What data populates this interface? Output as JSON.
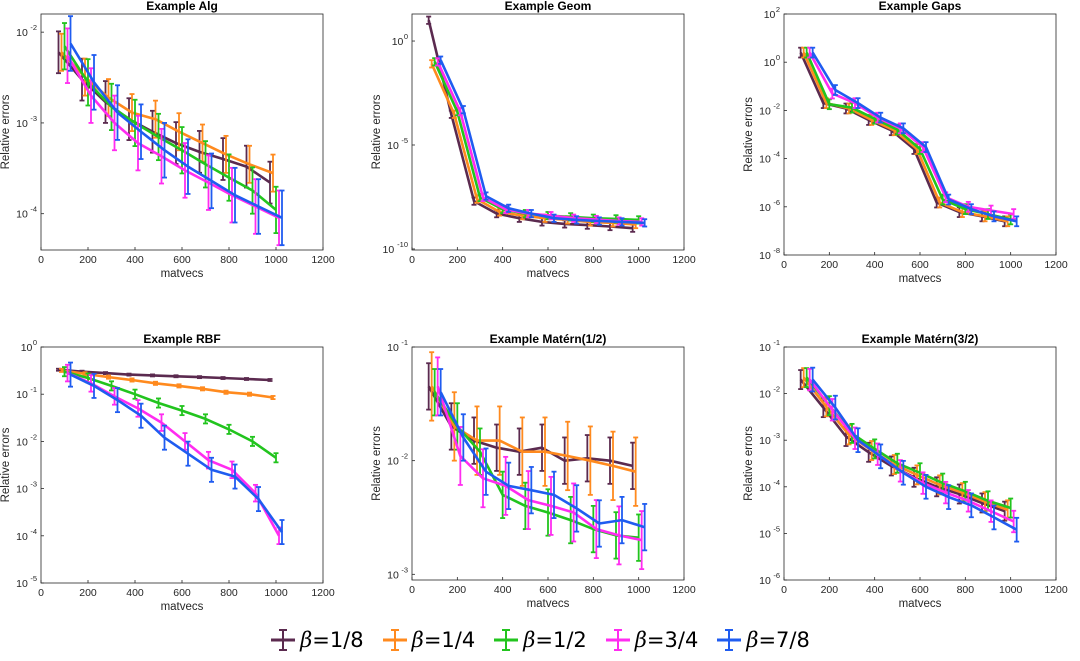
{
  "legend": {
    "symbol": "β",
    "items": [
      {
        "label": "=1/8",
        "color": "#5b2a4f"
      },
      {
        "label": "=1/4",
        "color": "#ff8a1e"
      },
      {
        "label": "=1/2",
        "color": "#22c41e"
      },
      {
        "label": "=3/4",
        "color": "#ff2cf0"
      },
      {
        "label": "=7/8",
        "color": "#1f5cf0"
      }
    ]
  },
  "chart_data": [
    {
      "type": "line",
      "title": "Example Alg",
      "xlabel": "matvecs",
      "ylabel": "Relative errors",
      "xlim": [
        0,
        1200
      ],
      "xticks": [
        "0",
        "200",
        "400",
        "600",
        "800",
        "1000",
        "1200"
      ],
      "ylim_log10": [
        -4.4,
        -1.8
      ],
      "yticks": [
        {
          "exp": -2,
          "label": "10"
        },
        {
          "exp": -3,
          "label": "10"
        },
        {
          "exp": -4,
          "label": "10"
        }
      ],
      "x": [
        100,
        200,
        300,
        400,
        500,
        600,
        700,
        800,
        900,
        1000
      ],
      "series": [
        {
          "name": "β=1/8",
          "values": [
            0.006,
            0.003,
            0.0017,
            0.0011,
            0.0008,
            0.0006,
            0.00048,
            0.0004,
            0.00033,
            0.00022
          ],
          "err_factor": 1.7
        },
        {
          "name": "β=1/4",
          "values": [
            0.006,
            0.0032,
            0.0019,
            0.0013,
            0.0011,
            0.0008,
            0.0006,
            0.00045,
            0.00035,
            0.00028
          ],
          "err_factor": 1.6
        },
        {
          "name": "β=1/2",
          "values": [
            0.007,
            0.0028,
            0.0015,
            0.001,
            0.0007,
            0.0005,
            0.00035,
            0.00025,
            0.00018,
            0.00011
          ],
          "err_factor": 1.8
        },
        {
          "name": "β=3/4",
          "values": [
            0.0055,
            0.002,
            0.001,
            0.0006,
            0.00043,
            0.0003,
            0.00022,
            0.00016,
            0.00012,
            9e-05
          ],
          "err_factor": 2.0
        },
        {
          "name": "β=7/8",
          "values": [
            0.0075,
            0.0028,
            0.0013,
            0.0008,
            0.0005,
            0.00033,
            0.00023,
            0.00016,
            0.00012,
            9e-05
          ],
          "err_factor": 2.0
        }
      ]
    },
    {
      "type": "line",
      "title": "Example Geom",
      "xlabel": "matvecs",
      "ylabel": "Relative errors",
      "xlim": [
        0,
        1200
      ],
      "xticks": [
        "0",
        "200",
        "400",
        "600",
        "800",
        "1000",
        "1200"
      ],
      "ylim_log10": [
        -10.05,
        1.3
      ],
      "yticks": [
        {
          "exp": 0,
          "label": "10"
        },
        {
          "exp": -5,
          "label": "10"
        },
        {
          "exp": -10,
          "label": "10"
        }
      ],
      "x": [
        100,
        200,
        300,
        400,
        500,
        600,
        700,
        800,
        900,
        1000
      ],
      "series": [
        {
          "name": "β=1/8",
          "values": [
            10,
            0.0003,
            2e-08,
            5e-09,
            3e-09,
            2e-09,
            1.6e-09,
            1.4e-09,
            1.2e-09,
            1e-09
          ],
          "err_factor": 1.5
        },
        {
          "name": "β=1/4",
          "values": [
            0.08,
            0.0003,
            2.5e-08,
            6e-09,
            4e-09,
            3e-09,
            2.5e-09,
            2e-09,
            1.8e-09,
            1.5e-09
          ],
          "err_factor": 1.5
        },
        {
          "name": "β=1/2",
          "values": [
            0.1,
            0.0004,
            3e-08,
            8e-09,
            5e-09,
            4e-09,
            3.5e-09,
            3e-09,
            2.8e-09,
            2.5e-09
          ],
          "err_factor": 1.5
        },
        {
          "name": "β=3/4",
          "values": [
            0.1,
            0.0004,
            3e-08,
            8e-09,
            5e-09,
            4e-09,
            3e-09,
            2.6e-09,
            2.2e-09,
            2e-09
          ],
          "err_factor": 1.5
        },
        {
          "name": "β=7/8",
          "values": [
            0.12,
            0.0005,
            3.5e-08,
            9e-09,
            5e-09,
            3e-09,
            2.5e-09,
            2.2e-09,
            2e-09,
            1.8e-09
          ],
          "err_factor": 1.5
        }
      ]
    },
    {
      "type": "line",
      "title": "Example Gaps",
      "xlabel": "matvecs",
      "ylabel": "Relative errors",
      "xlim": [
        0,
        1200
      ],
      "xticks": [
        "0",
        "200",
        "400",
        "600",
        "800",
        "1000",
        "1200"
      ],
      "ylim_log10": [
        -8,
        2
      ],
      "yticks": [
        {
          "exp": 2,
          "label": "10"
        },
        {
          "exp": 0,
          "label": "10"
        },
        {
          "exp": -2,
          "label": "10"
        },
        {
          "exp": -4,
          "label": "10"
        },
        {
          "exp": -6,
          "label": "10"
        },
        {
          "exp": -8,
          "label": "10"
        }
      ],
      "x": [
        100,
        200,
        300,
        400,
        500,
        600,
        700,
        800,
        900,
        1000
      ],
      "series": [
        {
          "name": "β=1/8",
          "values": [
            2.5,
            0.02,
            0.012,
            0.004,
            0.0015,
            0.00025,
            1.5e-06,
            6e-07,
            4e-07,
            2.5e-07
          ],
          "err_factor": 1.6
        },
        {
          "name": "β=1/4",
          "values": [
            2.5,
            0.02,
            0.012,
            0.004,
            0.0015,
            0.00025,
            1.5e-06,
            6e-07,
            4e-07,
            2.5e-07
          ],
          "err_factor": 1.6
        },
        {
          "name": "β=1/2",
          "values": [
            2.5,
            0.018,
            0.013,
            0.0045,
            0.0016,
            0.00025,
            2e-06,
            8e-07,
            5e-07,
            3e-07
          ],
          "err_factor": 1.6
        },
        {
          "name": "β=3/4",
          "values": [
            2.5,
            0.05,
            0.02,
            0.005,
            0.0018,
            0.0003,
            2.5e-06,
            1e-06,
            7e-07,
            5e-07
          ],
          "err_factor": 1.6
        },
        {
          "name": "β=7/8",
          "values": [
            2.5,
            0.07,
            0.02,
            0.005,
            0.0018,
            0.0003,
            2e-06,
            8e-07,
            4e-07,
            2.5e-07
          ],
          "err_factor": 1.6
        }
      ]
    },
    {
      "type": "line",
      "title": "Example RBF",
      "xlabel": "matvecs",
      "ylabel": "Relative errors",
      "xlim": [
        0,
        1200
      ],
      "xticks": [
        "0",
        "200",
        "400",
        "600",
        "800",
        "1000",
        "1200"
      ],
      "ylim_log10": [
        -5,
        0
      ],
      "yticks": [
        {
          "exp": 0,
          "label": "10"
        },
        {
          "exp": -1,
          "label": "10"
        },
        {
          "exp": -2,
          "label": "10"
        },
        {
          "exp": -3,
          "label": "10"
        },
        {
          "exp": -4,
          "label": "10"
        },
        {
          "exp": -5,
          "label": "10"
        }
      ],
      "x": [
        100,
        200,
        300,
        400,
        500,
        600,
        700,
        800,
        900,
        1000
      ],
      "series": [
        {
          "name": "β=1/8",
          "values": [
            0.33,
            0.3,
            0.28,
            0.26,
            0.25,
            0.24,
            0.23,
            0.22,
            0.21,
            0.2
          ],
          "err_factor": 1.05
        },
        {
          "name": "β=1/4",
          "values": [
            0.32,
            0.27,
            0.23,
            0.2,
            0.17,
            0.15,
            0.13,
            0.11,
            0.1,
            0.085
          ],
          "err_factor": 1.08
        },
        {
          "name": "β=1/2",
          "values": [
            0.3,
            0.22,
            0.15,
            0.1,
            0.065,
            0.045,
            0.03,
            0.018,
            0.01,
            0.0045
          ],
          "err_factor": 1.25
        },
        {
          "name": "β=3/4",
          "values": [
            0.28,
            0.17,
            0.09,
            0.05,
            0.025,
            0.01,
            0.004,
            0.0025,
            0.0008,
            0.0001
          ],
          "err_factor": 1.5
        },
        {
          "name": "β=7/8",
          "values": [
            0.26,
            0.15,
            0.075,
            0.035,
            0.012,
            0.0055,
            0.0025,
            0.0018,
            0.0006,
            0.00012
          ],
          "err_factor": 1.8
        }
      ]
    },
    {
      "type": "line",
      "title": "Example Matérn(1/2)",
      "xlabel": "matvecs",
      "ylabel": "Relative errors",
      "xlim": [
        0,
        1200
      ],
      "xticks": [
        "0",
        "200",
        "400",
        "600",
        "800",
        "1000",
        "1200"
      ],
      "ylim_log10": [
        -3.05,
        -1
      ],
      "yticks": [
        {
          "exp": -1,
          "label": "10"
        },
        {
          "exp": -2,
          "label": "10"
        },
        {
          "exp": -3,
          "label": "10"
        }
      ],
      "x": [
        100,
        200,
        300,
        400,
        500,
        600,
        700,
        800,
        900,
        1000
      ],
      "series": [
        {
          "name": "β=1/8",
          "values": [
            0.045,
            0.02,
            0.015,
            0.013,
            0.012,
            0.013,
            0.01,
            0.0105,
            0.01,
            0.009
          ],
          "err_factor": 1.6
        },
        {
          "name": "β=1/4",
          "values": [
            0.045,
            0.02,
            0.015,
            0.015,
            0.012,
            0.012,
            0.011,
            0.01,
            0.009,
            0.008
          ],
          "err_factor": 2.0
        },
        {
          "name": "β=1/2",
          "values": [
            0.04,
            0.02,
            0.012,
            0.005,
            0.004,
            0.0035,
            0.003,
            0.0025,
            0.0022,
            0.0021
          ],
          "err_factor": 1.6
        },
        {
          "name": "β=3/4",
          "values": [
            0.045,
            0.011,
            0.007,
            0.006,
            0.0045,
            0.004,
            0.0035,
            0.0025,
            0.0022,
            0.002
          ],
          "err_factor": 1.8
        },
        {
          "name": "β=7/8",
          "values": [
            0.04,
            0.016,
            0.008,
            0.006,
            0.0055,
            0.005,
            0.0038,
            0.0028,
            0.003,
            0.0026
          ],
          "err_factor": 1.6
        }
      ]
    },
    {
      "type": "line",
      "title": "Example Matérn(3/2)",
      "xlabel": "matvecs",
      "ylabel": "Relative errors",
      "xlim": [
        0,
        1200
      ],
      "xticks": [
        "0",
        "200",
        "400",
        "600",
        "800",
        "1000",
        "1200"
      ],
      "ylim_log10": [
        -6,
        -1
      ],
      "yticks": [
        {
          "exp": -1,
          "label": "10"
        },
        {
          "exp": -2,
          "label": "10"
        },
        {
          "exp": -3,
          "label": "10"
        },
        {
          "exp": -4,
          "label": "10"
        },
        {
          "exp": -5,
          "label": "10"
        },
        {
          "exp": -6,
          "label": "10"
        }
      ],
      "x": [
        100,
        200,
        300,
        400,
        500,
        600,
        700,
        800,
        900,
        1000
      ],
      "series": [
        {
          "name": "β=1/8",
          "values": [
            0.02,
            0.005,
            0.0012,
            0.00055,
            0.00028,
            0.00016,
            0.0001,
            7e-05,
            4.5e-05,
            3e-05
          ],
          "err_factor": 1.6
        },
        {
          "name": "β=1/4",
          "values": [
            0.022,
            0.0052,
            0.0013,
            0.0006,
            0.0003,
            0.00018,
            0.00011,
            7.5e-05,
            4.8e-05,
            3.2e-05
          ],
          "err_factor": 1.6
        },
        {
          "name": "β=1/2",
          "values": [
            0.022,
            0.0055,
            0.0014,
            0.00065,
            0.00032,
            0.0002,
            0.00012,
            8e-05,
            5e-05,
            3.5e-05
          ],
          "err_factor": 1.6
        },
        {
          "name": "β=3/4",
          "values": [
            0.02,
            0.0045,
            0.0011,
            0.0005,
            0.00022,
            0.00012,
            7.5e-05,
            5e-05,
            3e-05,
            1.8e-05
          ],
          "err_factor": 1.7
        },
        {
          "name": "β=7/8",
          "values": [
            0.02,
            0.005,
            0.001,
            0.00045,
            0.0002,
            0.0001,
            6e-05,
            4e-05,
            2.2e-05,
            1.2e-05
          ],
          "err_factor": 1.8
        }
      ]
    }
  ]
}
